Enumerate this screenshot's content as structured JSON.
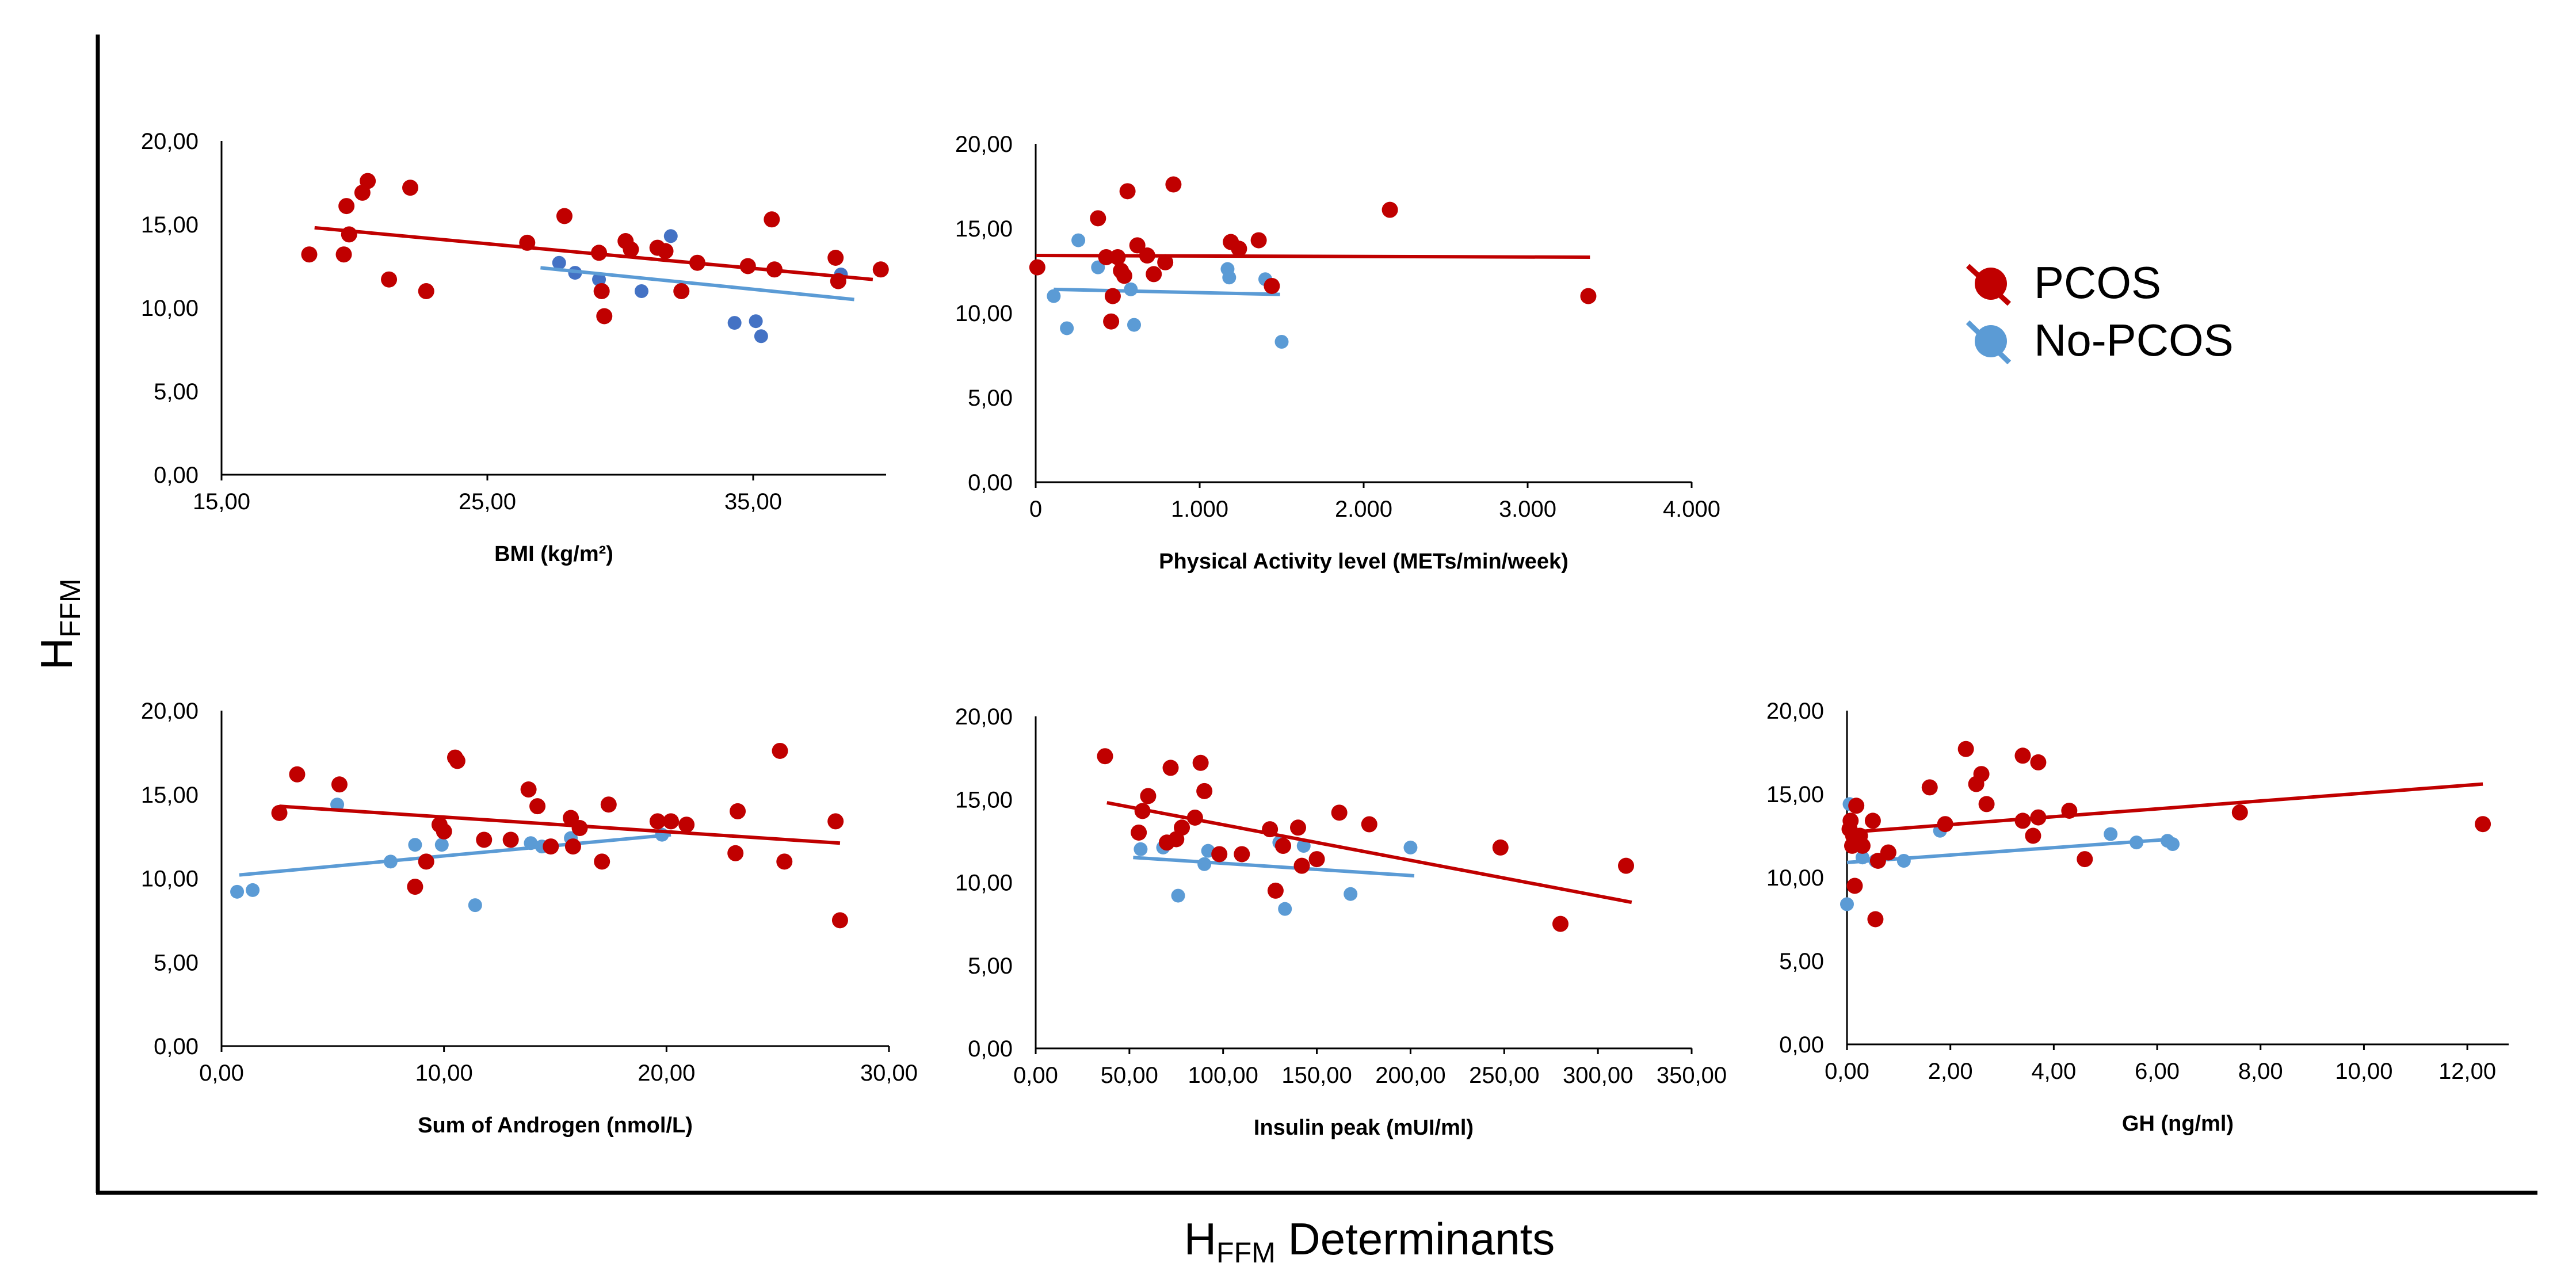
{
  "figure": {
    "y_axis_label": {
      "main": "H",
      "sub": "FFM"
    },
    "x_axis_label": {
      "main": "H",
      "sub": "FFM",
      "rest": " Determinants"
    }
  },
  "legend": [
    {
      "name": "PCOS",
      "color": "#c00000"
    },
    {
      "name": "No-PCOS",
      "color": "#5b9bd5"
    }
  ],
  "colors": {
    "pcos": "#c00000",
    "nopcos": "#5b9bd5",
    "nopcos_dark": "#4472c4"
  },
  "chart_data": [
    {
      "id": "bmi",
      "type": "scatter",
      "xlabel": "BMI (kg/m²)",
      "ylim": [
        0,
        20
      ],
      "xlim": [
        15,
        40
      ],
      "xticks": [
        15,
        25,
        35
      ],
      "xtick_labels": [
        "15,00",
        "25,00",
        "35,00"
      ],
      "yticks": [
        0,
        5,
        10,
        15,
        20
      ],
      "ytick_labels": [
        "0,00",
        "5,00",
        "10,00",
        "15,00",
        "20,00"
      ],
      "series": [
        {
          "name": "PCOS",
          "x": [
            18.3,
            19.6,
            19.8,
            19.7,
            20.3,
            20.5,
            21.3,
            22.1,
            22.7,
            26.5,
            27.9,
            29.2,
            29.3,
            29.4,
            30.2,
            30.4,
            31.4,
            31.7,
            32.3,
            32.9,
            34.8,
            35.8,
            35.7,
            38.1,
            38.2,
            39.8
          ],
          "y": [
            13.2,
            13.2,
            14.4,
            16.1,
            16.9,
            17.6,
            11.7,
            17.2,
            11.0,
            13.9,
            15.5,
            13.3,
            11.0,
            9.5,
            14.0,
            13.5,
            13.6,
            13.4,
            11.0,
            12.7,
            12.5,
            12.3,
            15.3,
            13.0,
            11.6,
            12.3
          ],
          "trend": [
            [
              18.5,
              14.8
            ],
            [
              39.5,
              11.7
            ]
          ]
        },
        {
          "name": "No-PCOS",
          "x": [
            27.7,
            28.3,
            29.2,
            30.8,
            31.9,
            34.3,
            35.1,
            35.3,
            38.3
          ],
          "y": [
            12.7,
            12.1,
            11.7,
            11.0,
            14.3,
            9.1,
            9.2,
            8.3,
            12.0
          ],
          "trend": [
            [
              27.0,
              12.4
            ],
            [
              38.8,
              10.5
            ]
          ]
        }
      ]
    },
    {
      "id": "pa",
      "type": "scatter",
      "xlabel": "Physical Activity level (METs/min/week)",
      "ylim": [
        0,
        20
      ],
      "xlim": [
        0,
        4000
      ],
      "xticks": [
        0,
        1000,
        2000,
        3000,
        4000
      ],
      "xtick_labels": [
        "0",
        "1.000",
        "2.000",
        "3.000",
        "4.000"
      ],
      "yticks": [
        0,
        5,
        10,
        15,
        20
      ],
      "ytick_labels": [
        "0,00",
        "5,00",
        "10,00",
        "15,00",
        "20,00"
      ],
      "series": [
        {
          "name": "PCOS",
          "x": [
            10,
            380,
            430,
            460,
            470,
            500,
            520,
            540,
            560,
            620,
            680,
            720,
            790,
            840,
            1190,
            1240,
            1360,
            1440,
            2160,
            3370
          ],
          "y": [
            12.7,
            15.6,
            13.3,
            9.5,
            11.0,
            13.3,
            12.5,
            12.2,
            17.2,
            14.0,
            13.4,
            12.3,
            13.0,
            17.6,
            14.2,
            13.8,
            14.3,
            11.6,
            16.1,
            11.0
          ],
          "trend": [
            [
              0,
              13.4
            ],
            [
              3380,
              13.3
            ]
          ]
        },
        {
          "name": "No-PCOS",
          "x": [
            110,
            190,
            260,
            380,
            580,
            600,
            1170,
            1180,
            1400,
            1500
          ],
          "y": [
            11.0,
            9.1,
            14.3,
            12.7,
            11.4,
            9.3,
            12.6,
            12.1,
            12.0,
            8.3
          ],
          "trend": [
            [
              110,
              11.4
            ],
            [
              1490,
              11.1
            ]
          ]
        }
      ]
    },
    {
      "id": "androgen",
      "type": "scatter",
      "xlabel": "Sum of Androgen (nmol/L)",
      "ylim": [
        0,
        20
      ],
      "xlim": [
        0,
        30
      ],
      "xticks": [
        0,
        10,
        20,
        30
      ],
      "xtick_labels": [
        "0,00",
        "10,00",
        "20,00",
        "30,00"
      ],
      "yticks": [
        0,
        5,
        10,
        15,
        20
      ],
      "ytick_labels": [
        "0,00",
        "5,00",
        "10,00",
        "15,00",
        "20,00"
      ],
      "series": [
        {
          "name": "PCOS",
          "x": [
            2.6,
            3.4,
            5.3,
            8.7,
            9.2,
            9.8,
            10.0,
            10.5,
            10.6,
            11.8,
            13.0,
            13.8,
            14.2,
            14.8,
            15.7,
            15.8,
            16.1,
            17.1,
            17.4,
            19.6,
            20.2,
            20.9,
            23.1,
            23.2,
            25.1,
            25.3,
            27.6,
            27.8
          ],
          "y": [
            13.9,
            16.2,
            15.6,
            9.5,
            11.0,
            13.2,
            12.8,
            17.2,
            17.0,
            12.3,
            12.3,
            15.3,
            14.3,
            11.9,
            13.6,
            11.9,
            13.0,
            11.0,
            14.4,
            13.4,
            13.4,
            13.2,
            11.5,
            14.0,
            17.6,
            11.0,
            13.4,
            7.5
          ],
          "trend": [
            [
              2.6,
              14.3
            ],
            [
              27.8,
              12.1
            ]
          ]
        },
        {
          "name": "No-PCOS",
          "x": [
            0.7,
            1.4,
            5.2,
            7.6,
            8.7,
            9.9,
            11.4,
            13.9,
            14.4,
            15.7,
            19.8
          ],
          "y": [
            9.2,
            9.3,
            14.4,
            11.0,
            12.0,
            12.0,
            8.4,
            12.1,
            11.9,
            12.4,
            12.6
          ],
          "trend": [
            [
              0.8,
              10.2
            ],
            [
              20.2,
              12.6
            ]
          ]
        }
      ]
    },
    {
      "id": "insulin",
      "type": "scatter",
      "xlabel": "Insulin peak (mUI/ml)",
      "ylim": [
        0,
        20
      ],
      "xlim": [
        0,
        350
      ],
      "xticks": [
        0,
        50,
        100,
        150,
        200,
        250,
        300,
        350
      ],
      "xtick_labels": [
        "0,00",
        "50,00",
        "100,00",
        "150,00",
        "200,00",
        "250,00",
        "300,00",
        "350,00"
      ],
      "yticks": [
        0,
        5,
        10,
        15,
        20
      ],
      "ytick_labels": [
        "0,00",
        "5,00",
        "10,00",
        "15,00",
        "20,00"
      ],
      "series": [
        {
          "name": "PCOS",
          "x": [
            37,
            55,
            57,
            60,
            70,
            72,
            75,
            78,
            85,
            88,
            90,
            98,
            110,
            125,
            128,
            132,
            140,
            142,
            150,
            162,
            178,
            248,
            280,
            315
          ],
          "y": [
            17.6,
            13.0,
            14.3,
            15.2,
            12.4,
            16.9,
            12.6,
            13.3,
            13.9,
            17.2,
            15.5,
            11.7,
            11.7,
            13.2,
            9.5,
            12.2,
            13.3,
            11.0,
            11.4,
            14.2,
            13.5,
            12.1,
            7.5,
            11.0
          ],
          "trend": [
            [
              38,
              14.8
            ],
            [
              318,
              8.8
            ]
          ]
        },
        {
          "name": "No-PCOS",
          "x": [
            56,
            68,
            76,
            90,
            92,
            130,
            133,
            143,
            168,
            200
          ],
          "y": [
            12.0,
            12.1,
            9.2,
            11.1,
            11.9,
            12.4,
            8.4,
            12.2,
            9.3,
            12.1
          ],
          "trend": [
            [
              52,
              11.5
            ],
            [
              202,
              10.4
            ]
          ]
        }
      ]
    },
    {
      "id": "gh",
      "type": "scatter",
      "xlabel": "GH (ng/ml)",
      "ylim": [
        0,
        20
      ],
      "xlim": [
        0,
        12.8
      ],
      "xticks": [
        0,
        2,
        4,
        6,
        8,
        10,
        12
      ],
      "xtick_labels": [
        "0,00",
        "2,00",
        "4,00",
        "6,00",
        "8,00",
        "10,00",
        "12,00"
      ],
      "yticks": [
        0,
        5,
        10,
        15,
        20
      ],
      "ytick_labels": [
        "0,00",
        "5,00",
        "10,00",
        "15,00",
        "20,00"
      ],
      "series": [
        {
          "name": "PCOS",
          "x": [
            0.05,
            0.07,
            0.1,
            0.12,
            0.15,
            0.18,
            0.2,
            0.25,
            0.3,
            0.5,
            0.55,
            0.6,
            0.8,
            1.6,
            1.9,
            2.3,
            2.5,
            2.6,
            2.7,
            3.4,
            3.4,
            3.6,
            3.7,
            3.7,
            4.3,
            4.6,
            7.6,
            12.3
          ],
          "y": [
            12.9,
            13.4,
            11.9,
            12.5,
            9.5,
            14.3,
            12.1,
            12.5,
            11.9,
            13.4,
            7.5,
            11.0,
            11.5,
            15.4,
            13.2,
            17.7,
            15.6,
            16.2,
            14.4,
            17.3,
            13.4,
            12.5,
            13.6,
            16.9,
            14.0,
            11.1,
            13.9,
            13.2
          ],
          "trend": [
            [
              0,
              12.7
            ],
            [
              12.3,
              15.6
            ]
          ]
        },
        {
          "name": "No-PCOS",
          "x": [
            0.0,
            0.05,
            0.3,
            0.55,
            1.1,
            1.8,
            5.1,
            5.6,
            6.2,
            6.3
          ],
          "y": [
            8.4,
            14.4,
            11.2,
            11.0,
            11.0,
            12.8,
            12.6,
            12.1,
            12.2,
            12.0
          ],
          "trend": [
            [
              0,
              10.9
            ],
            [
              6.3,
              12.3
            ]
          ]
        }
      ]
    }
  ]
}
